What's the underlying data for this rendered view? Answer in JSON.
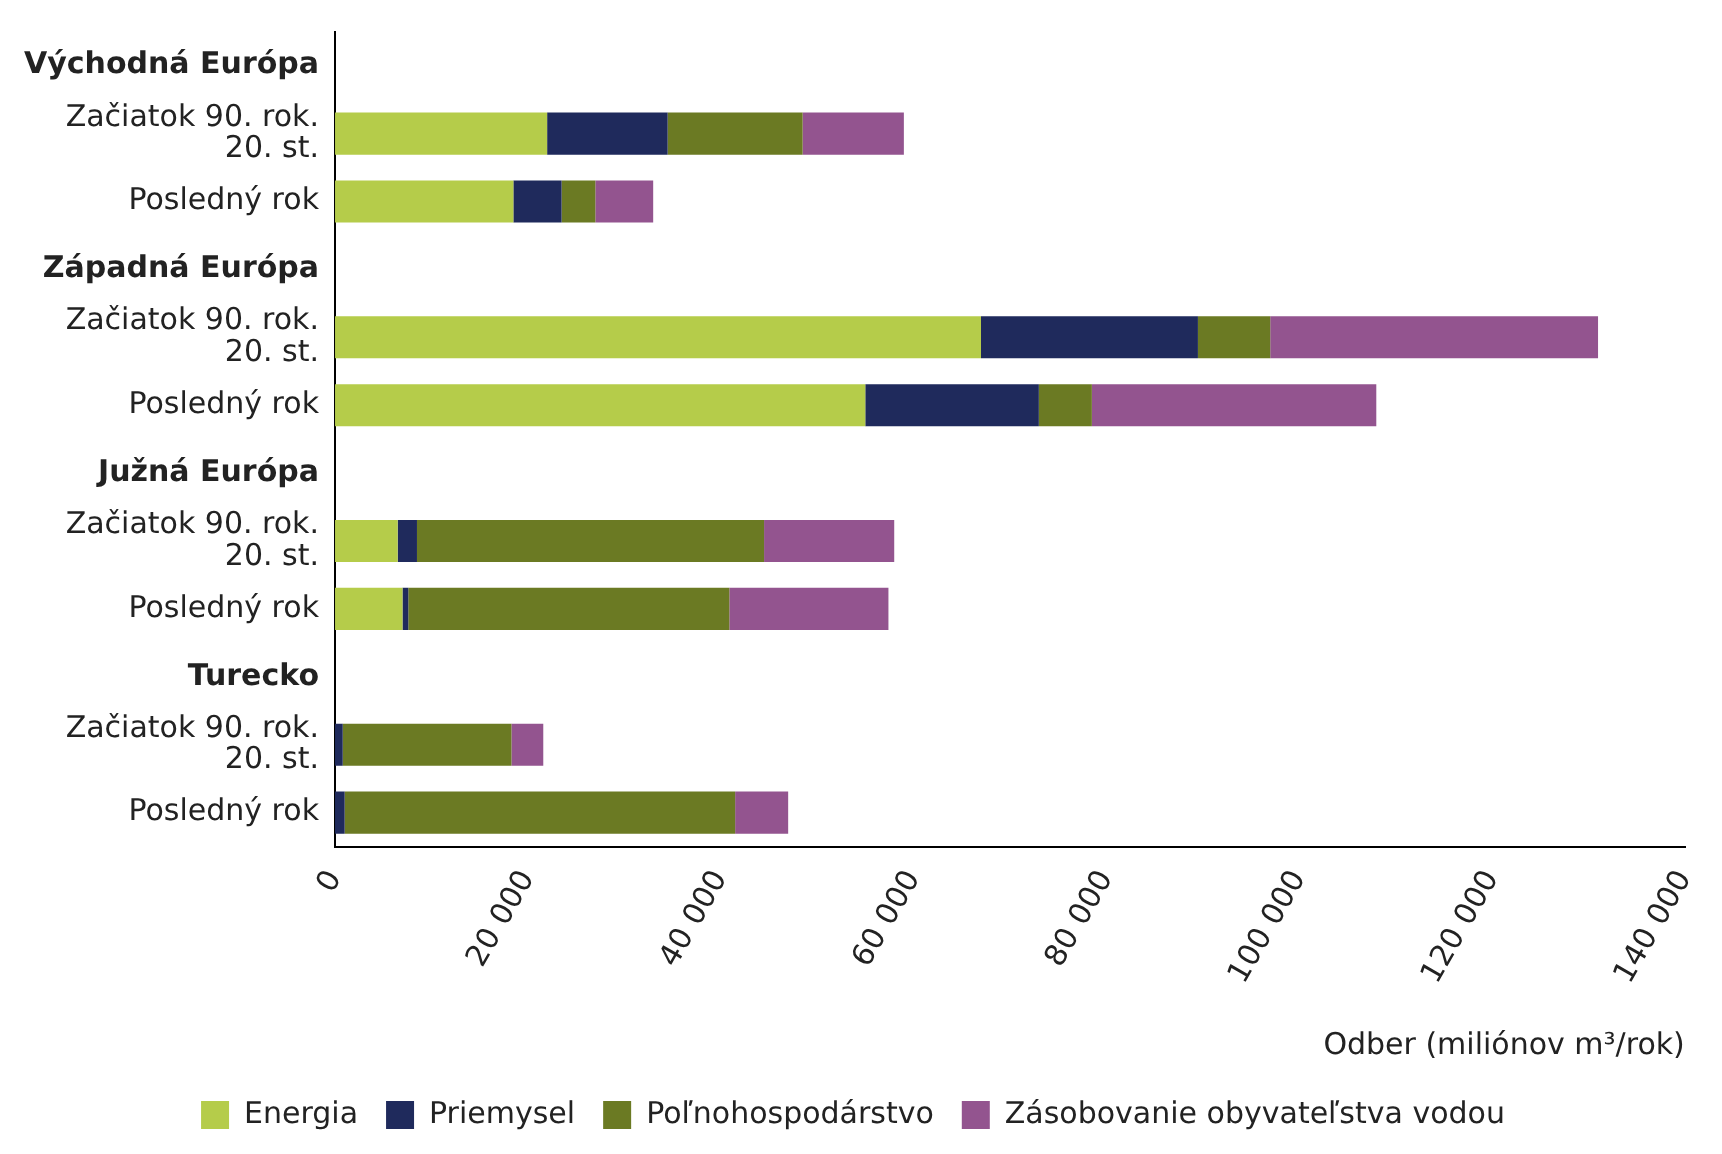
{
  "chart_data": {
    "type": "bar",
    "orientation": "horizontal",
    "stacked": true,
    "xlabel": "Odber (miliónov m³/rok)",
    "categories": [
      "Východná Európa",
      "Začiatok 90. rok. 20. st.",
      "Posledný rok",
      "Západná Európa",
      "Začiatok 90. rok. 20. st.",
      "Posledný rok",
      "Južná Európa",
      "Začiatok 90. rok. 20. st.",
      "Posledný rok",
      "Turecko",
      "Začiatok 90. rok. 20. st.",
      "Posledný rok"
    ],
    "series": [
      {
        "name": "Energia",
        "color": "#b5cc4a",
        "values": [
          null,
          22000,
          18500,
          null,
          67000,
          55000,
          null,
          6500,
          7000,
          null,
          0,
          0
        ]
      },
      {
        "name": "Priemysel",
        "color": "#1f2a5c",
        "values": [
          null,
          12500,
          5000,
          null,
          22500,
          18000,
          null,
          2000,
          600,
          null,
          800,
          1000
        ]
      },
      {
        "name": "Poľnohospodárstvo",
        "color": "#6b7a23",
        "values": [
          null,
          14000,
          3500,
          null,
          7500,
          5500,
          null,
          36000,
          33300,
          null,
          17500,
          40500
        ]
      },
      {
        "name": "Zásobovanie obyvateľstva vodou",
        "color": "#93548f",
        "values": [
          null,
          10500,
          6000,
          null,
          34000,
          29500,
          null,
          13500,
          16500,
          null,
          3300,
          5500
        ]
      }
    ],
    "xlim": [
      0,
      140000
    ],
    "xticks": [
      0,
      {
        "value": 20000,
        "label": "20 000"
      },
      {
        "value": 40000,
        "label": "40 000"
      },
      {
        "value": 60000,
        "label": "60 000"
      },
      {
        "value": 80000,
        "label": "80 000"
      },
      {
        "value": 100000,
        "label": "100 000"
      },
      {
        "value": 120000,
        "label": "120 000"
      },
      {
        "value": 140000,
        "label": "140 000"
      }
    ],
    "grid": false,
    "legend": "bottom"
  }
}
